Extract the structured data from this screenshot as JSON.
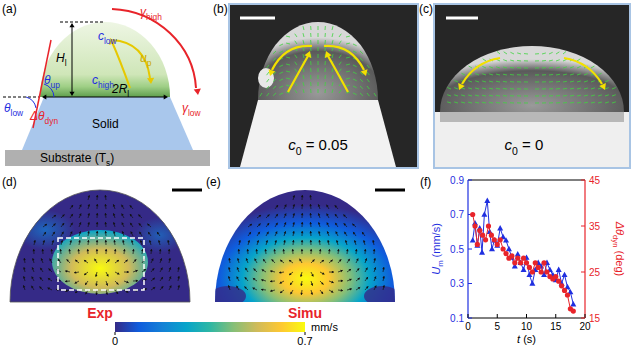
{
  "panels": {
    "a": {
      "letter": "(a)",
      "labels": [
        {
          "main": "γ",
          "sub": "high"
        },
        {
          "main": "c",
          "sub": "low"
        },
        {
          "main": "H",
          "sub": "l"
        },
        {
          "main": "c",
          "sub": "high"
        },
        {
          "main": "u",
          "sub": "p"
        },
        {
          "main": "2R",
          "sub": "l"
        },
        {
          "main": "θ",
          "sub": "up"
        },
        {
          "main": "θ",
          "sub": "low"
        },
        {
          "main": "Δθ",
          "sub": "dyn"
        },
        {
          "main": "γ",
          "sub": "low"
        },
        {
          "main": "Solid"
        },
        {
          "main": "Substrate (T",
          "sub": "s",
          "rest": ")"
        }
      ]
    },
    "b": {
      "letter": "(b)",
      "label": {
        "main": "c",
        "sub": "0",
        "rest": " = 0.05"
      }
    },
    "c": {
      "letter": "(c)",
      "label": {
        "main": "c",
        "sub": "0",
        "rest": " = 0"
      }
    },
    "d": {
      "letter": "(d)",
      "label": "Exp"
    },
    "e": {
      "letter": "(e)",
      "label": "Simu"
    },
    "colorbar": {
      "range": [
        0,
        0.7
      ],
      "ticks": [
        0,
        0.7
      ],
      "label": "mm/s"
    },
    "f": {
      "letter": "(f)"
    }
  },
  "chart_data": {
    "type": "line",
    "xlabel": {
      "main": "t",
      "rest": " (s)"
    },
    "ylabel": {
      "main": "U",
      "sub": "m",
      "rest": " (mm/s)"
    },
    "y2label": {
      "main": "Δθ",
      "sub": "dyn",
      "rest": " (deg)"
    },
    "xlim": [
      0,
      20
    ],
    "xticks": [
      0,
      5,
      10,
      15,
      20
    ],
    "ylim": [
      0.1,
      0.9
    ],
    "yticks": [
      0.1,
      0.3,
      0.5,
      0.7,
      0.9
    ],
    "y2lim": [
      15,
      45
    ],
    "y2ticks": [
      15,
      25,
      35,
      45
    ],
    "series": [
      {
        "color": "#1f2fe0",
        "marker": "triangle",
        "axis": "y",
        "x": [
          0.8,
          1.2,
          1.6,
          2.0,
          2.4,
          2.8,
          3.3,
          3.7,
          4.1,
          4.5,
          5.0,
          5.5,
          6.0,
          6.5,
          7.0,
          7.5,
          8.0,
          8.5,
          9.0,
          9.5,
          10.0,
          10.5,
          11.0,
          11.5,
          12.0,
          12.5,
          13.0,
          13.5,
          14.0,
          14.5,
          15.0,
          15.5,
          16.0,
          16.5,
          17.0,
          17.5,
          18.0
        ],
        "values": [
          0.55,
          0.65,
          0.52,
          0.62,
          0.48,
          0.7,
          0.78,
          0.6,
          0.5,
          0.55,
          0.52,
          0.62,
          0.57,
          0.55,
          0.5,
          0.45,
          0.4,
          0.47,
          0.42,
          0.38,
          0.45,
          0.35,
          0.3,
          0.38,
          0.42,
          0.4,
          0.35,
          0.42,
          0.38,
          0.35,
          0.32,
          0.38,
          0.3,
          0.35,
          0.28,
          0.25,
          0.18
        ]
      },
      {
        "color": "#e8242a",
        "marker": "circle",
        "axis": "y2",
        "x": [
          0.8,
          1.2,
          1.6,
          2.0,
          2.5,
          3.0,
          3.5,
          4.0,
          4.5,
          5.0,
          5.5,
          6.0,
          6.5,
          7.0,
          7.5,
          8.0,
          8.5,
          9.0,
          9.5,
          10.0,
          10.5,
          11.0,
          11.5,
          12.0,
          12.5,
          13.0,
          13.5,
          14.0,
          14.5,
          15.0,
          15.5,
          16.0,
          16.5,
          17.0,
          17.5,
          18.0
        ],
        "values": [
          37.5,
          35,
          31,
          34,
          33,
          32,
          35,
          33,
          32,
          31,
          32,
          30,
          29,
          28,
          28.5,
          27,
          28,
          27,
          28,
          27,
          26,
          25,
          27,
          26,
          25,
          27,
          25,
          24,
          23.5,
          24,
          23,
          22,
          21,
          20,
          17,
          16.5
        ]
      }
    ]
  }
}
